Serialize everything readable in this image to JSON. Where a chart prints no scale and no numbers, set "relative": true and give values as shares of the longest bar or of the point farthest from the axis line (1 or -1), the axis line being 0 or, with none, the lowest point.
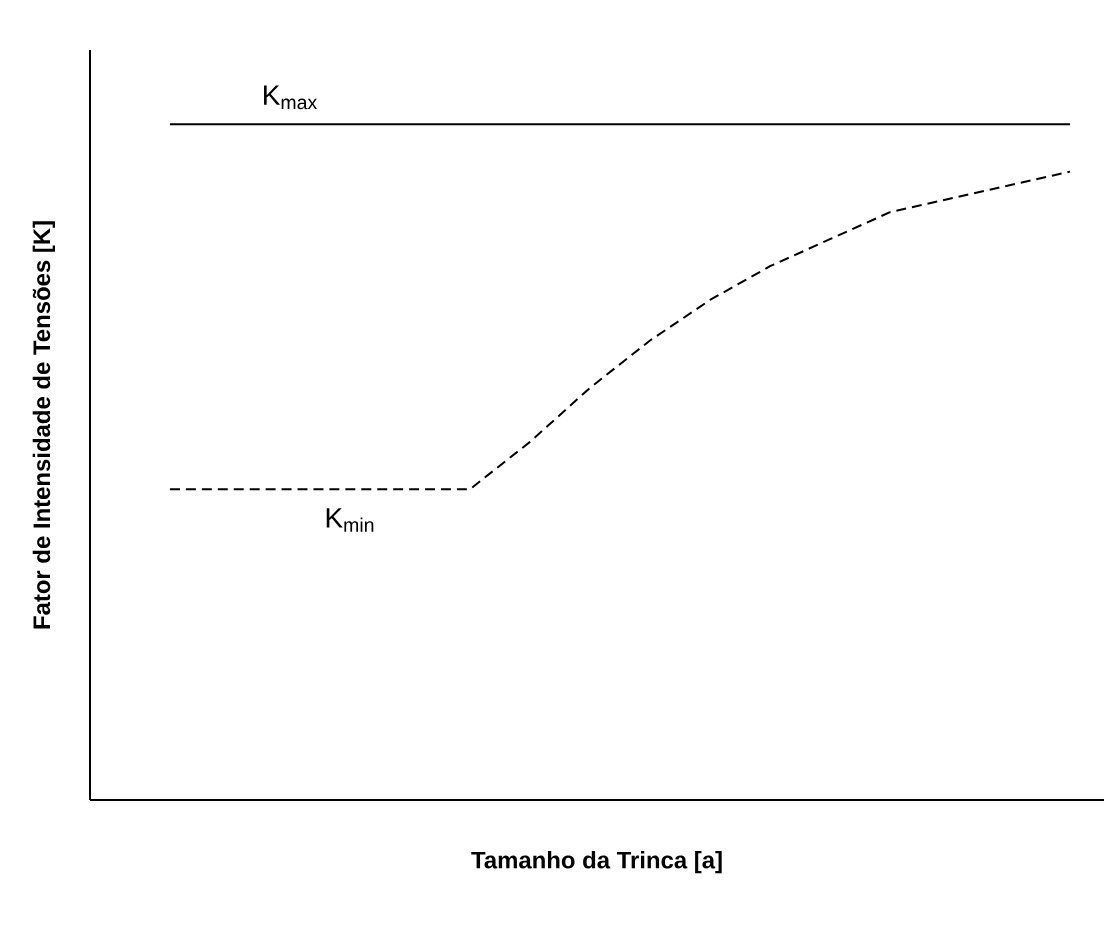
{
  "chart_data": {
    "type": "line",
    "relative": true,
    "xlabel": "Tamanho da Trinca [a]",
    "ylabel": "Fator de Intensidade de Tensões [K]",
    "categories": [
      null,
      null,
      null,
      null,
      null,
      null,
      null,
      null,
      null,
      null,
      null,
      null,
      null,
      null,
      null,
      null
    ],
    "series": [
      {
        "name": "K$_{max}$",
        "color": "#000000",
        "line_style": "solid",
        "values": [
          1,
          1,
          1,
          1,
          1,
          1,
          1,
          1,
          1,
          1,
          1,
          1,
          1,
          1,
          1,
          1
        ]
      },
      {
        "name": "K$_{min}$",
        "color": "#000000",
        "line_style": "dashed",
        "values": [
          0.46,
          0.46,
          0.46,
          0.46,
          0.46,
          0.46,
          0.53,
          0.61,
          0.68,
          0.74,
          0.79,
          0.83,
          0.87,
          0.89,
          0.91,
          0.93
        ]
      }
    ]
  }
}
